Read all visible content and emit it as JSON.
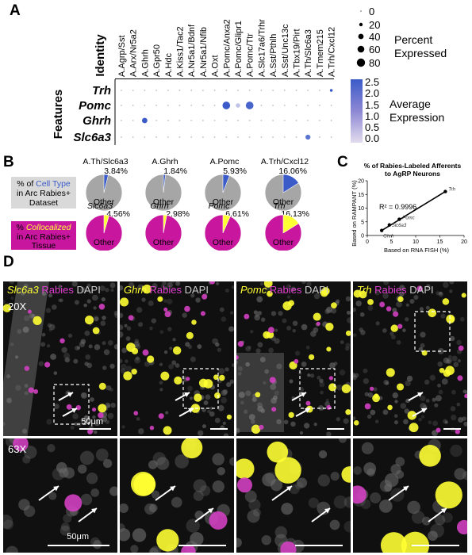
{
  "panels": {
    "a": "A",
    "b": "B",
    "c": "C",
    "d": "D"
  },
  "dotplot": {
    "identity_label": "Identity",
    "features_label": "Features",
    "identities": [
      "A.Agrp/Sst",
      "A.Arx/Nr5a2",
      "A.Ghrh",
      "A.Gpr50",
      "A.Hdc",
      "A.Kiss1/Tac2",
      "A.Nr5a1/Bdnf",
      "A.Nr5a1/Nfib",
      "A.Oxt",
      "A.Pomc/Anxa2",
      "A.Pomc/Glipr1",
      "A.Pomc/Ttr",
      "A.Slc17a6/Trhr",
      "A.Sst/Pthlh",
      "A.Sst/Unc13c",
      "A.Tbx19/Pirt",
      "A.Th/Slc6a3",
      "A.Tmem215",
      "A.Trh/Cxcl12"
    ],
    "features": [
      "Trh",
      "Pomc",
      "Ghrh",
      "Slc6a3"
    ],
    "size_legend": {
      "values": [
        "0",
        "20",
        "40",
        "60",
        "80"
      ],
      "title_line1": "Percent",
      "title_line2": "Expressed"
    },
    "color_legend": {
      "ticks": [
        "2.5",
        "2.0",
        "1.5",
        "1.0",
        "0.5",
        "0.0"
      ],
      "title_line1": "Average",
      "title_line2": "Expression",
      "color_low": "#dcd6ea",
      "color_high": "#3b5bc8"
    },
    "highlighted": [
      {
        "feature": "Trh",
        "identity": "A.Trh/Cxcl12",
        "percent": 8,
        "avg": 2.5
      },
      {
        "feature": "Pomc",
        "identity": "A.Pomc/Anxa2",
        "percent": 60,
        "avg": 2.5
      },
      {
        "feature": "Pomc",
        "identity": "A.Pomc/Glipr1",
        "percent": 20,
        "avg": 0.5
      },
      {
        "feature": "Pomc",
        "identity": "A.Pomc/Ttr",
        "percent": 60,
        "avg": 2.3
      },
      {
        "feature": "Ghrh",
        "identity": "A.Ghrh",
        "percent": 30,
        "avg": 2.5
      },
      {
        "feature": "Slc6a3",
        "identity": "A.Th/Slc6a3",
        "percent": 25,
        "avg": 2.0
      }
    ]
  },
  "pies": {
    "row1_label": {
      "line1_prefix": "% of ",
      "line1_highlight": "Cell Type",
      "line2": "in Arc Rabies+",
      "line3": "Dataset"
    },
    "row2_label": {
      "line1_prefix": "% ",
      "line1_highlight": "Collocalized",
      "line2": "in Arc Rabies+",
      "line3": "Tissue"
    },
    "other_label": "Other",
    "row1": [
      {
        "name": "A.Th/Slc6a3",
        "pct_label": "3.84%",
        "fraction": 0.0384
      },
      {
        "name": "A.Ghrh",
        "pct_label": "1.84%",
        "fraction": 0.0184
      },
      {
        "name": "A.Pomc",
        "pct_label": "5.93%",
        "fraction": 0.0593
      },
      {
        "name": "A.Trh/Cxcl12",
        "pct_label": "16.06%",
        "fraction": 0.1606
      }
    ],
    "row2": [
      {
        "name": "Slc6a3",
        "pct_label": "4.56%",
        "fraction": 0.0456
      },
      {
        "name": "Ghrh",
        "pct_label": "2.98%",
        "fraction": 0.0298
      },
      {
        "name": "Pomc",
        "pct_label": "6.61%",
        "fraction": 0.0661
      },
      {
        "name": "Trh",
        "pct_label": "16.13%",
        "fraction": 0.1613
      }
    ],
    "colors": {
      "gray": "#a6a6a6",
      "blue": "#3b5bc8",
      "magenta": "#c8179e",
      "yellow": "#ffff33",
      "label_box": "#d9d9d9"
    }
  },
  "chart_data": {
    "type": "scatter",
    "title_line1": "% of Rabies-Labeled Afferents",
    "title_line2": "to AgRP Neurons",
    "xlabel": "Based on RNA FISH (%)",
    "ylabel": "Based on RAMPANT (%)",
    "annotation": "R² = 0.9996",
    "xlim": [
      0,
      20
    ],
    "ylim": [
      0,
      20
    ],
    "xticks": [
      "0",
      "5",
      "10",
      "15",
      "20"
    ],
    "yticks": [
      "0",
      "5",
      "10",
      "15",
      "20"
    ],
    "points": [
      {
        "label": "Ghrh",
        "x": 2.98,
        "y": 1.84
      },
      {
        "label": "Slc6a3",
        "x": 4.56,
        "y": 3.84
      },
      {
        "label": "Pomc",
        "x": 6.61,
        "y": 5.93
      },
      {
        "label": "Trh",
        "x": 16.13,
        "y": 16.06
      }
    ]
  },
  "micrographs": {
    "rabies": "Rabies",
    "dapi": "DAPI",
    "mag_20x": "20X",
    "mag_63x": "63X",
    "scale_text": "50μm",
    "genes": [
      "Slc6a3",
      "Ghrh",
      "Pomc",
      "Trh"
    ]
  }
}
